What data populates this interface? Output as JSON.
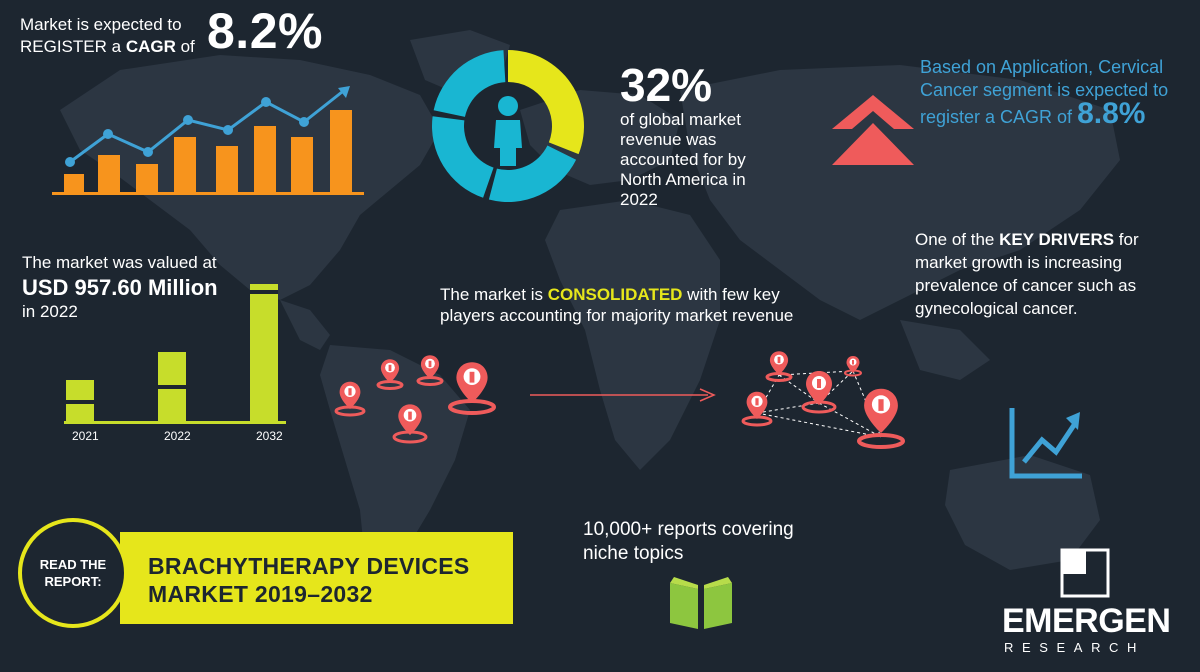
{
  "cagr": {
    "label_prefix": "Market is expected to REGISTER a ",
    "label_bold": "CAGR",
    "label_suffix": " of",
    "value": "8.2%"
  },
  "valuation": {
    "label": "The market was valued at",
    "value": "USD 957.60 Million",
    "year_text": "in 2022"
  },
  "year_bars": {
    "labels": [
      "2021",
      "2022",
      "2032"
    ],
    "relative_heights": [
      0.3,
      0.5,
      0.99
    ]
  },
  "north_america": {
    "value": "32%",
    "description": "of global market revenue was accounted for by North America in 2022",
    "donut_share": 0.32
  },
  "application": {
    "text": "Based on Application, Cervical Cancer segment is expected to register a CAGR of",
    "value": "8.8%"
  },
  "drivers": {
    "prefix": "One of the ",
    "bold": "KEY DRIVERS",
    "suffix": " for market growth is increasing prevalence of cancer such as gynecological cancer."
  },
  "consolidated": {
    "prefix": "The market is ",
    "highlight": "CONSOLIDATED",
    "suffix": " with few key players accounting for majority market revenue"
  },
  "reports": {
    "text": "10,000+ reports covering niche topics"
  },
  "read_report": {
    "badge": "READ THE REPORT:",
    "title_line1": "BRACHYTHERAPY DEVICES",
    "title_line2": "MARKET 2019–2032"
  },
  "brand": {
    "name": "EMERGEN",
    "sub": "RESEARCH"
  },
  "colors": {
    "background": "#1d2630",
    "map": "#2c3642",
    "orange": "#f7941d",
    "blue": "#3fa2d6",
    "yellow_green": "#c7dd2b",
    "yellow": "#e6e61b",
    "coral": "#ef5b5b",
    "cyan": "#19b6d2"
  },
  "icons": [
    "growth-bar-chart-icon",
    "person-icon",
    "double-chevron-up-icon",
    "location-pin-icon",
    "trend-up-icon",
    "open-book-icon",
    "brand-logo-icon"
  ]
}
